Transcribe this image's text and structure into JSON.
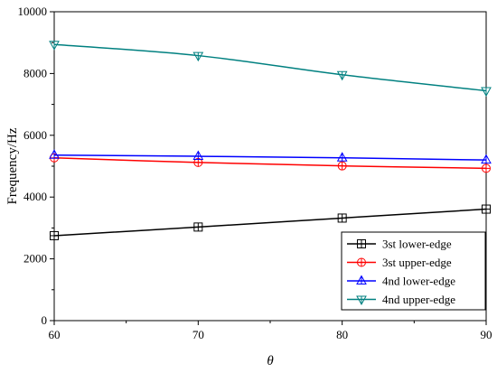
{
  "chart_data": {
    "type": "line",
    "xlabel": "θ",
    "ylabel": "Frequency/Hz",
    "xlim": [
      60,
      90
    ],
    "ylim": [
      0,
      10000
    ],
    "x_ticks": [
      60,
      70,
      80,
      90
    ],
    "y_ticks": [
      0,
      2000,
      4000,
      6000,
      8000,
      10000
    ],
    "grid": false,
    "legend_position": "bottom-right",
    "x": [
      60,
      70,
      80,
      90
    ],
    "series": [
      {
        "name": "3st lower-edge",
        "color": "#000000",
        "marker": "square",
        "values": [
          2750,
          3030,
          3320,
          3610
        ]
      },
      {
        "name": "3st upper-edge",
        "color": "#ff0000",
        "marker": "circle",
        "values": [
          5270,
          5120,
          5010,
          4930
        ]
      },
      {
        "name": "4nd lower-edge",
        "color": "#0000ff",
        "marker": "triangle-up",
        "values": [
          5360,
          5320,
          5270,
          5200
        ]
      },
      {
        "name": "4nd upper-edge",
        "color": "#008080",
        "marker": "triangle-down",
        "values": [
          8940,
          8580,
          7960,
          7440
        ]
      }
    ]
  }
}
